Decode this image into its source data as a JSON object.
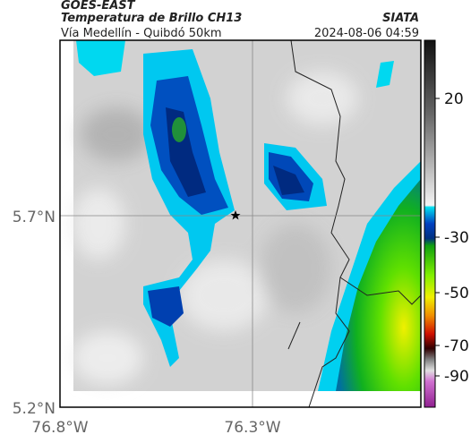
{
  "header": {
    "source": "GOES-EAST",
    "title": "Temperatura de Brillo CH13",
    "subtitle": "Vía Medellín - Quibdó 50km",
    "org": "SIATA",
    "timestamp": "2024-08-06 04:59"
  },
  "map": {
    "lat_labels": [
      "5.7°N",
      "5.2°N"
    ],
    "lon_labels": [
      "76.8°W",
      "76.3°W"
    ]
  },
  "colorbar": {
    "ticks": [
      "20",
      "-30",
      "-50",
      "-70",
      "-90"
    ]
  }
}
